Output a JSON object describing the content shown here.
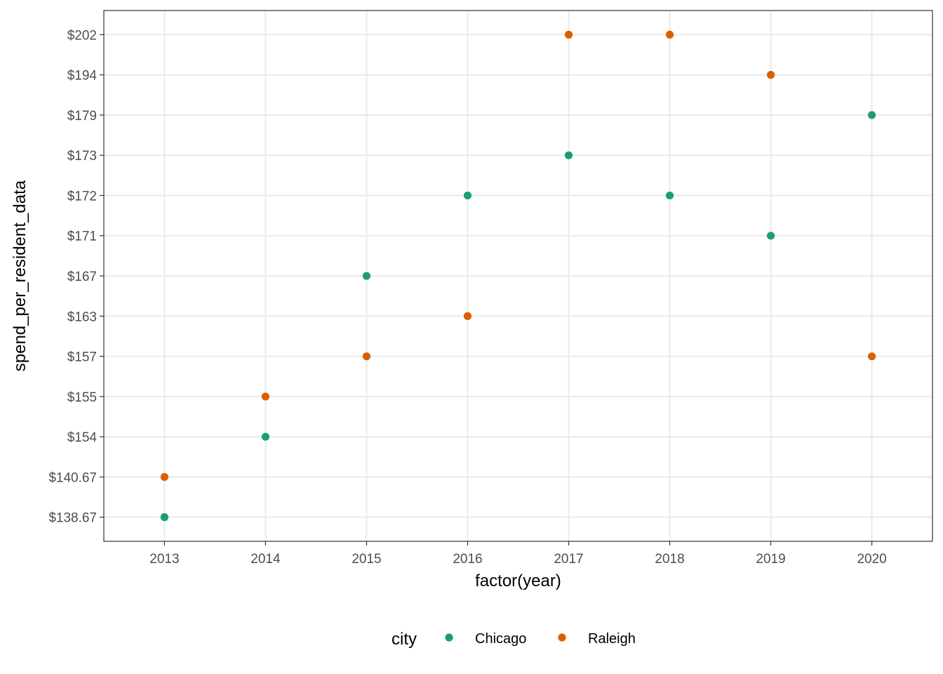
{
  "chart_data": {
    "type": "scatter",
    "xlabel": "factor(year)",
    "ylabel": "spend_per_resident_data",
    "x_categories": [
      "2013",
      "2014",
      "2015",
      "2016",
      "2017",
      "2018",
      "2019",
      "2020"
    ],
    "y_categories": [
      "$138.67",
      "$140.67",
      "$154",
      "$155",
      "$157",
      "$163",
      "$167",
      "$171",
      "$172",
      "$173",
      "$179",
      "$194",
      "$202"
    ],
    "legend": {
      "title": "city",
      "placement": "bottom"
    },
    "grid": true,
    "series": [
      {
        "name": "Chicago",
        "color": "#1b9e77",
        "points": [
          {
            "x": "2013",
            "y": "$138.67"
          },
          {
            "x": "2014",
            "y": "$154"
          },
          {
            "x": "2015",
            "y": "$167"
          },
          {
            "x": "2016",
            "y": "$172"
          },
          {
            "x": "2017",
            "y": "$173"
          },
          {
            "x": "2018",
            "y": "$172"
          },
          {
            "x": "2019",
            "y": "$171"
          },
          {
            "x": "2020",
            "y": "$179"
          }
        ]
      },
      {
        "name": "Raleigh",
        "color": "#d95f02",
        "points": [
          {
            "x": "2013",
            "y": "$140.67"
          },
          {
            "x": "2014",
            "y": "$155"
          },
          {
            "x": "2015",
            "y": "$157"
          },
          {
            "x": "2016",
            "y": "$163"
          },
          {
            "x": "2017",
            "y": "$202"
          },
          {
            "x": "2018",
            "y": "$202"
          },
          {
            "x": "2019",
            "y": "$194"
          },
          {
            "x": "2020",
            "y": "$157"
          }
        ]
      }
    ]
  }
}
